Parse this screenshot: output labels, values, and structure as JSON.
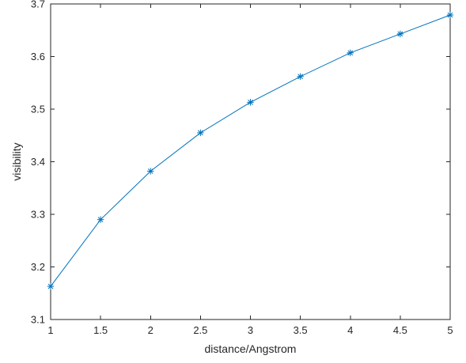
{
  "chart_data": {
    "type": "line",
    "title": "",
    "xlabel": "distance/Angstrom",
    "ylabel": "visibility",
    "xlim": [
      1,
      5
    ],
    "ylim": [
      3.1,
      3.7
    ],
    "x_ticks": [
      1,
      1.5,
      2,
      2.5,
      3,
      3.5,
      4,
      4.5,
      5
    ],
    "x_tick_labels": [
      "1",
      "1.5",
      "2",
      "2.5",
      "3",
      "3.5",
      "4",
      "4.5",
      "5"
    ],
    "y_ticks": [
      3.1,
      3.2,
      3.3,
      3.4,
      3.5,
      3.6,
      3.7
    ],
    "y_tick_labels": [
      "3.1",
      "3.2",
      "3.3",
      "3.4",
      "3.5",
      "3.6",
      "3.7"
    ],
    "grid": false,
    "legend": "none",
    "series": [
      {
        "x": [
          1,
          1.5,
          2,
          2.5,
          3,
          3.5,
          4,
          4.5,
          5
        ],
        "y": [
          3.163,
          3.29,
          3.382,
          3.455,
          3.513,
          3.562,
          3.607,
          3.643,
          3.679
        ],
        "color": "#0072BD",
        "marker": "asterisk"
      }
    ]
  }
}
